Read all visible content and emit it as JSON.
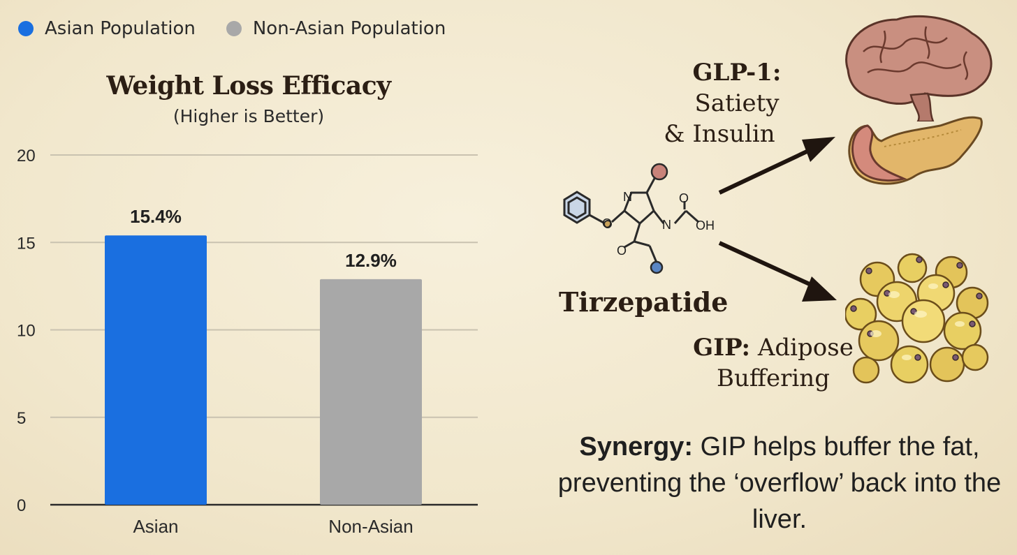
{
  "legend": [
    {
      "label": "Asian Population",
      "color": "#1a6fe0"
    },
    {
      "label": "Non-Asian Population",
      "color": "#a8a8a8"
    }
  ],
  "chart_data": {
    "type": "bar",
    "title": "Weight Loss Efficacy",
    "subtitle": "(Higher is Better)",
    "categories": [
      "Asian",
      "Non-Asian"
    ],
    "values": [
      15.4,
      12.9
    ],
    "data_labels": [
      "15.4%",
      "12.9%"
    ],
    "colors": [
      "#1a6fe0",
      "#a8a8a8"
    ],
    "ylim": [
      0,
      20
    ],
    "yticks": [
      0,
      5,
      10,
      15,
      20
    ],
    "grid": true,
    "legend_position": "top-left"
  },
  "mechanism": {
    "drug": "Tirzepatide",
    "molecule_labels": {
      "n1": "N",
      "o1": "O",
      "n2": "N",
      "o2": "O",
      "oh": "OH",
      "o3": "O"
    },
    "glp1": {
      "name": "GLP-1:",
      "line1": "Satiety",
      "line2": "& Insulin"
    },
    "gip": {
      "name": "GIP:",
      "line1": "Adipose",
      "line2": "Buffering"
    },
    "icons": {
      "brain": "brain-icon",
      "pancreas": "pancreas-icon",
      "fat": "fat-cells-icon",
      "molecule": "molecule-icon"
    }
  },
  "synergy": {
    "label": "Synergy:",
    "text": "GIP helps buffer the fat, preventing the ‘overflow’ back into the liver."
  }
}
